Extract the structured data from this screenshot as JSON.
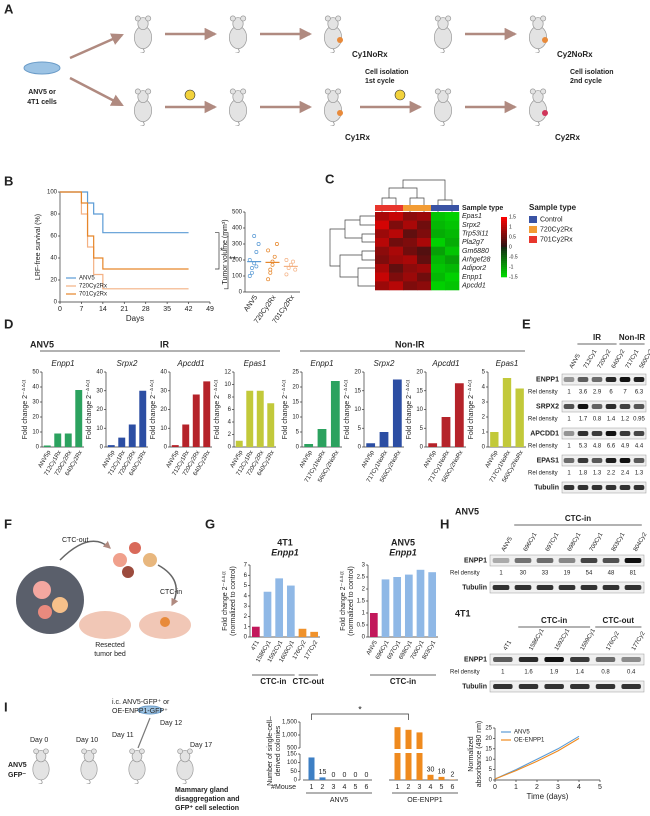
{
  "figure": {
    "labels": [
      "A",
      "B",
      "C",
      "D",
      "E",
      "F",
      "G",
      "H",
      "I"
    ],
    "A": {
      "cells": [
        "ANV5 or",
        "4T1 cells"
      ],
      "cy1norx": "Cy1NoRx",
      "cy2norx": "Cy2NoRx",
      "iso1": [
        "Cell isolation",
        "1st cycle"
      ],
      "iso2": [
        "Cell isolation",
        "2nd cycle"
      ],
      "cy1rx": "Cy1Rx",
      "cy2rx": "Cy2Rx"
    },
    "B": {
      "sig1": "*",
      "sig2": "**"
    },
    "D": {
      "anv5": "ANV5",
      "ir": "IR",
      "nonir": "Non-IR"
    },
    "E": {
      "lanes": [
        "ANV5",
        "712Cy1",
        "720Cy2",
        "640Cy2",
        "717Cy1",
        "560Cy2"
      ],
      "groups": [
        {
          "label": "IR",
          "from": 1,
          "to": 3
        },
        {
          "label": "Non-IR",
          "from": 4,
          "to": 5
        }
      ],
      "rows": [
        {
          "name": "ENPP1",
          "density_label": "Rel density",
          "density": [
            1,
            3.6,
            2.9,
            6,
            7,
            6.3
          ]
        },
        {
          "name": "SRPX2",
          "density_label": "Rel density",
          "density": [
            1,
            1.7,
            0.8,
            1.4,
            1.2,
            0.95
          ]
        },
        {
          "name": "APCDD1",
          "density_label": "Rel density",
          "density": [
            1,
            5.3,
            4.8,
            6.6,
            4.9,
            4.4
          ]
        },
        {
          "name": "EPAS1",
          "density_label": "Rel density",
          "density": [
            1,
            1.8,
            1.3,
            2.2,
            2.4,
            1.3
          ]
        }
      ],
      "loading": "Tubulin"
    },
    "F": {
      "ctc_out": "CTC-out",
      "ctc_in": "CTC-in",
      "bed": [
        "Resected",
        "tumor bed"
      ]
    },
    "H": {
      "anv5": {
        "title": "ANV5",
        "lanes": [
          "ANV5",
          "696Cy1",
          "697Cy1",
          "698Cy1",
          "700Cy1",
          "803Cy1",
          "804Cy2"
        ],
        "groups": [
          {
            "label": "CTC-in",
            "from": 1,
            "to": 6
          }
        ],
        "rows": [
          {
            "name": "ENPP1",
            "density_label": "Rel density",
            "density": [
              1,
              30,
              33,
              19,
              54,
              48,
              81
            ]
          }
        ],
        "loading": "Tubulin"
      },
      "t41": {
        "title": "4T1",
        "lanes": [
          "4T1",
          "1586Cy1",
          "1592Cy1",
          "1599Cy1",
          "176Cy2",
          "177Cy2"
        ],
        "groups": [
          {
            "label": "CTC-in",
            "from": 1,
            "to": 3
          },
          {
            "label": "CTC-out",
            "from": 4,
            "to": 5
          }
        ],
        "rows": [
          {
            "name": "ENPP1",
            "density_label": "Rel density",
            "density": [
              1,
              1.6,
              1.9,
              1.4,
              0.8,
              0.4
            ]
          }
        ],
        "loading": "Tubulin"
      }
    },
    "I": {
      "day0": "Day 0",
      "day10": "Day 10",
      "day11": "Day 11",
      "ic": [
        "i.c. ANV5-GFP⁺ or",
        "OE-ENPP1-GFP⁺"
      ],
      "day12": "Day 12",
      "day17": "Day 17",
      "cells": [
        "ANV5",
        "GFP⁻"
      ],
      "mammary": [
        "Mammary gland",
        "disaggregation and",
        "GFP⁺ cell selection"
      ]
    }
  },
  "chart_data": [
    {
      "type": "step",
      "ylabel": "LRF-free survival (%)",
      "xlabel": "Days",
      "x": [
        0,
        7,
        9,
        11,
        14,
        17,
        21,
        42
      ],
      "series": [
        {
          "name": "ANV5",
          "color": "#5b9bd5",
          "values": [
            100,
            100,
            90,
            80,
            63,
            63,
            63,
            63
          ]
        },
        {
          "name": "720Cy2Rx",
          "color": "#f4b183",
          "values": [
            100,
            80,
            50,
            25,
            12,
            12,
            12,
            12
          ]
        },
        {
          "name": "701Cy2Rx",
          "color": "#e6862a",
          "values": [
            100,
            90,
            60,
            40,
            30,
            30,
            30,
            30
          ]
        }
      ],
      "xlim": [
        0,
        49
      ],
      "xticks": [
        0,
        7,
        14,
        21,
        28,
        35,
        42,
        49
      ],
      "ylim": [
        0,
        100
      ],
      "yticks": [
        0,
        20,
        40,
        60,
        80,
        100
      ],
      "legend": "lower left"
    },
    {
      "type": "strip",
      "ylabel": "Tumor volume (mm³)",
      "categories": [
        "ANV5",
        "720Cy2Rx",
        "701Cy2Rx"
      ],
      "colors": [
        "#5b9bd5",
        "#e6862a",
        "#f4b183"
      ],
      "points": [
        [
          100,
          150,
          180,
          250,
          300,
          200,
          120,
          350,
          160
        ],
        [
          80,
          140,
          170,
          220,
          300,
          260,
          120,
          190
        ],
        [
          110,
          150,
          170,
          190,
          140,
          200
        ]
      ],
      "values": [
        190,
        185,
        160
      ],
      "ylim": [
        0,
        500
      ],
      "yticks": [
        0,
        100,
        200,
        300,
        400,
        500
      ]
    },
    {
      "type": "heatmap",
      "rows": [
        "Epas1",
        "Srpx2",
        "Trp53i11",
        "Pla2g7",
        "Gm6880",
        "Arhgef28",
        "Adipor2",
        "Enpp1",
        "Apcdd1"
      ],
      "values": [
        [
          0.9,
          1.1,
          0.7,
          0.8,
          -1.3,
          -1.4
        ],
        [
          1.2,
          0.6,
          0.9,
          0.5,
          -1.2,
          -1.3
        ],
        [
          0.8,
          1.0,
          0.4,
          0.6,
          -1.1,
          -1.2
        ],
        [
          1.0,
          0.5,
          0.6,
          0.9,
          -1.4,
          -1.1
        ],
        [
          0.7,
          0.9,
          0.5,
          0.3,
          -1.0,
          -1.3
        ],
        [
          0.6,
          0.8,
          0.9,
          0.4,
          -1.2,
          -1.0
        ],
        [
          0.9,
          0.4,
          0.7,
          0.8,
          -1.3,
          -1.2
        ],
        [
          1.1,
          0.6,
          0.8,
          0.5,
          -1.2,
          -1.4
        ],
        [
          0.8,
          1.0,
          0.6,
          0.7,
          -1.4,
          -1.3
        ]
      ],
      "legend_title": "Sample type",
      "sample_types": [
        {
          "name": "Control",
          "color": "#3a53a4"
        },
        {
          "name": "720Cy2Rx",
          "color": "#f39c34"
        },
        {
          "name": "701Cy2Rx",
          "color": "#e8362d"
        }
      ],
      "column_types": [
        2,
        2,
        1,
        1,
        0,
        0
      ],
      "zlim": [
        -1.5,
        1.5
      ],
      "colorbar_ticks": [
        1.5,
        1,
        0.5,
        0,
        -0.5,
        -1,
        -1.5
      ]
    },
    {
      "type": "bar",
      "title": "Enpp1",
      "ylabel": "Fold change 2⁻ᐞᐞᶜᵗ",
      "categories": [
        "ANV5p",
        "712Cy1Rx",
        "720Cy2Rx",
        "640Cy2Rx"
      ],
      "values": [
        1,
        9,
        9,
        38
      ],
      "color": "#2ca25f",
      "ylim": [
        0,
        50
      ],
      "yticks": [
        0,
        10,
        20,
        30,
        40,
        50
      ]
    },
    {
      "type": "bar",
      "title": "Srpx2",
      "ylabel": "Fold change 2⁻ᐞᐞᶜᵗ",
      "categories": [
        "ANV5p",
        "712Cy1Rx",
        "720Cy2Rx",
        "640Cy2Rx"
      ],
      "values": [
        1,
        5,
        12,
        30
      ],
      "color": "#2c4ea3",
      "ylim": [
        0,
        40
      ],
      "yticks": [
        0,
        10,
        20,
        30,
        40
      ]
    },
    {
      "type": "bar",
      "title": "Apcdd1",
      "ylabel": "Fold change 2⁻ᐞᐞᶜᵗ",
      "categories": [
        "ANV5p",
        "712Cy1Rx",
        "720Cy2Rx",
        "640Cy2Rx"
      ],
      "values": [
        1,
        12,
        28,
        35
      ],
      "color": "#b5232a",
      "ylim": [
        0,
        40
      ],
      "yticks": [
        0,
        10,
        20,
        30,
        40
      ]
    },
    {
      "type": "bar",
      "title": "Epas1",
      "ylabel": "Fold change 2⁻ᐞᐞᶜᵗ",
      "categories": [
        "ANV5p",
        "712Cy1Rx",
        "720Cy2Rx",
        "640Cy2Rx"
      ],
      "values": [
        1,
        9,
        9,
        7
      ],
      "color": "#c2c93a",
      "ylim": [
        0,
        12
      ],
      "yticks": [
        0,
        2,
        4,
        6,
        8,
        10,
        12
      ]
    },
    {
      "type": "bar",
      "title": "Enpp1",
      "ylabel": "Fold change 2⁻ᐞᐞᶜᵗ",
      "categories": [
        "ANV5p",
        "717Cy1NoRx",
        "560Cy2NoRx"
      ],
      "values": [
        1,
        6,
        22
      ],
      "color": "#2ca25f",
      "ylim": [
        0,
        25
      ],
      "yticks": [
        0,
        5,
        10,
        15,
        20,
        25
      ]
    },
    {
      "type": "bar",
      "title": "Srpx2",
      "ylabel": "Fold change 2⁻ᐞᐞᶜᵗ",
      "categories": [
        "ANV5p",
        "717Cy1NoRx",
        "560Cy2NoRx"
      ],
      "values": [
        1,
        4,
        18
      ],
      "color": "#2c4ea3",
      "ylim": [
        0,
        20
      ],
      "yticks": [
        0,
        5,
        10,
        15,
        20
      ]
    },
    {
      "type": "bar",
      "title": "Apcdd1",
      "ylabel": "Fold change 2⁻ᐞᐞᶜᵗ",
      "categories": [
        "ANV5p",
        "717Cy1NoRx",
        "560Cy2NoRx"
      ],
      "values": [
        1,
        8,
        17
      ],
      "color": "#b5232a",
      "ylim": [
        0,
        20
      ],
      "yticks": [
        0,
        5,
        10,
        15,
        20
      ]
    },
    {
      "type": "bar",
      "title": "Epas1",
      "ylabel": "Fold change 2⁻ᐞᐞᶜᵗ",
      "categories": [
        "ANV5p",
        "717Cy1NoRx",
        "560Cy2NoRx"
      ],
      "values": [
        1,
        4.6,
        3.9
      ],
      "color": "#c2c93a",
      "ylim": [
        0,
        5
      ],
      "yticks": [
        0,
        1,
        2,
        3,
        4,
        5
      ]
    },
    {
      "type": "bar",
      "title": "4T1",
      "subtitle": "Enpp1",
      "ylabel": [
        "Fold change 2⁻ᐞᐞᶜᵗ",
        "(normalized to control)"
      ],
      "categories": [
        "4T1",
        "1586Cy1",
        "1592Cy1",
        "1600Cy1",
        "176Cy2",
        "177Cy2"
      ],
      "values": [
        1,
        4.4,
        5.7,
        5.0,
        0.8,
        0.5
      ],
      "colors": [
        "#c2185b",
        "#8fb8e6",
        "#8fb8e6",
        "#8fb8e6",
        "#f0922b",
        "#f0922b"
      ],
      "ylim": [
        0,
        7
      ],
      "yticks": [
        0,
        1,
        2,
        3,
        4,
        5,
        6,
        7
      ],
      "groups": [
        {
          "label": "CTC-in",
          "from": 0,
          "to": 3
        },
        {
          "label": "CTC-out",
          "from": 4,
          "to": 5
        }
      ]
    },
    {
      "type": "bar",
      "title": "ANV5",
      "subtitle": "Enpp1",
      "ylabel": [
        "Fold change 2⁻ᐞᐞᶜᵗ",
        "(normalized to control)"
      ],
      "categories": [
        "ANV5",
        "696Cy1",
        "697Cy1",
        "698Cy1",
        "700Cy1",
        "803Cy1"
      ],
      "values": [
        1,
        2.4,
        2.5,
        2.6,
        2.8,
        2.7
      ],
      "colors": [
        "#c2185b",
        "#8fb8e6",
        "#8fb8e6",
        "#8fb8e6",
        "#8fb8e6",
        "#8fb8e6"
      ],
      "ylim": [
        0,
        3
      ],
      "yticks": [
        0,
        0.5,
        1,
        1.5,
        2,
        2.5,
        3
      ],
      "groups": [
        {
          "label": "CTC-in",
          "from": 0,
          "to": 5
        }
      ]
    },
    {
      "type": "brokenbar",
      "ylabel": [
        "Number of single-cell–",
        "derived colonies"
      ],
      "xlabel": "#Mouse",
      "categories": [
        "1",
        "2",
        "3",
        "4",
        "5",
        "6"
      ],
      "series": [
        {
          "name": "ANV5",
          "color": "#3d7fc4",
          "values": [
            130,
            15,
            0,
            0,
            0,
            0
          ],
          "value_labels": [
            null,
            "15",
            "0",
            "0",
            "0",
            "0"
          ]
        },
        {
          "name": "OE-ENPP1",
          "color": "#ef8a1e",
          "values": [
            1300,
            1200,
            1100,
            30,
            18,
            2
          ],
          "value_labels": [
            null,
            null,
            null,
            "30",
            "18",
            "2"
          ]
        }
      ],
      "ylim": [
        0,
        1500
      ],
      "break": [
        150,
        500
      ],
      "yticks": [
        0,
        50,
        100,
        150,
        500,
        {
          "value": 1000,
          "label": "1,000"
        },
        {
          "value": 1500,
          "label": "1,500"
        }
      ],
      "annotation": "*"
    },
    {
      "type": "line",
      "ylabel": [
        "Normalized",
        "absorbance (490 nm)"
      ],
      "xlabel": "Time (days)",
      "x": [
        0,
        1,
        2,
        3,
        4
      ],
      "series": [
        {
          "name": "ANV5",
          "color": "#5b9bd5",
          "values": [
            0.5,
            5,
            10,
            15,
            21
          ]
        },
        {
          "name": "OE-ENPP1",
          "color": "#ef8a1e",
          "values": [
            0.5,
            4.5,
            9,
            14,
            20
          ]
        }
      ],
      "xlim": [
        0,
        5
      ],
      "xticks": [
        0,
        1,
        2,
        3,
        4,
        5
      ],
      "ylim": [
        0,
        25
      ],
      "yticks": [
        0,
        5,
        10,
        15,
        20,
        25
      ],
      "legend": "upper left"
    }
  ]
}
